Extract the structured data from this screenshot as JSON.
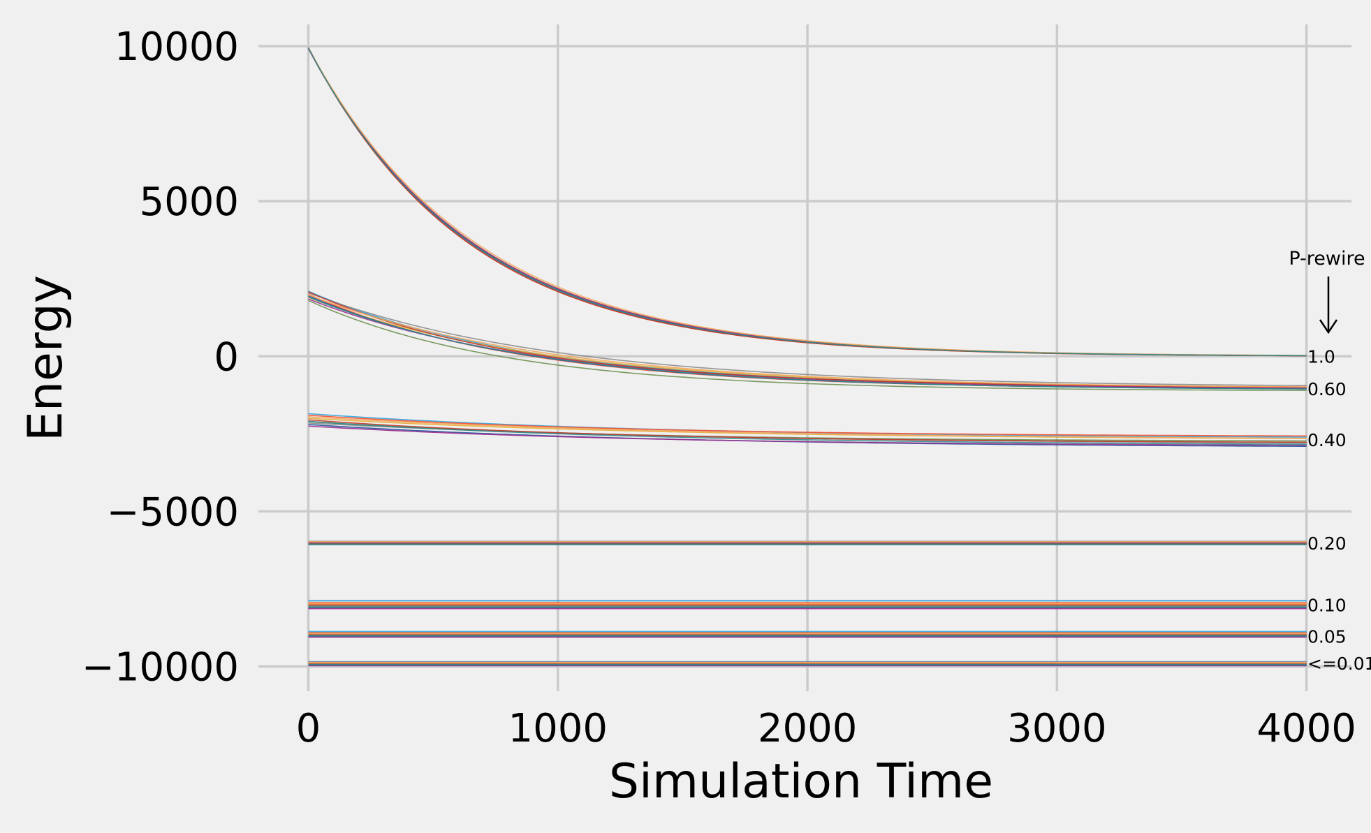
{
  "chart_data": {
    "type": "line",
    "title": "",
    "xlabel": "Simulation Time",
    "ylabel": "Energy",
    "xlim": [
      -200,
      4180
    ],
    "ylim": [
      -10800,
      10700
    ],
    "xticks": [
      0,
      1000,
      2000,
      3000,
      4000
    ],
    "xtick_labels": [
      "0",
      "1000",
      "2000",
      "3000",
      "4000"
    ],
    "yticks": [
      10000,
      5000,
      0,
      -5000,
      -10000
    ],
    "ytick_labels": [
      "10000",
      "5000",
      "0",
      "−5000",
      "−10000"
    ],
    "grid": true,
    "legend": "none",
    "t_end": 4000,
    "line_colors": [
      "#30a2da",
      "#fc4f30",
      "#e5ae38",
      "#6d904f",
      "#8b8b8b",
      "#1f4e9c",
      "#9b2c8e",
      "#c0392b",
      "#f2a65a",
      "#2e8b8b"
    ],
    "groups": [
      {
        "label": "1.0",
        "form": "exp",
        "start": [
          9950,
          9950,
          9930,
          9960,
          9940,
          9950,
          9920,
          9960,
          9950,
          9940
        ],
        "final": [
          0,
          0,
          5,
          -5,
          0,
          0,
          0,
          0,
          0,
          0
        ],
        "tau": [
          650,
          640,
          660,
          655,
          645,
          650,
          660,
          640,
          670,
          650
        ]
      },
      {
        "label": "0.60",
        "form": "exp",
        "start": [
          2100,
          2000,
          1900,
          1800,
          2050,
          1950,
          1850,
          2080,
          1980,
          1920
        ],
        "final": [
          -1050,
          -1070,
          -1030,
          -1120,
          -1000,
          -1080,
          -1060,
          -1020,
          -1040,
          -1090
        ],
        "tau": [
          900,
          850,
          950,
          800,
          1000,
          880,
          920,
          860,
          980,
          900
        ]
      },
      {
        "label": "0.40",
        "form": "exp",
        "start": [
          -1850,
          -1900,
          -2000,
          -2100,
          -2150,
          -2200,
          -2250,
          -2050,
          -1950,
          -2100
        ],
        "final": [
          -2650,
          -2600,
          -2700,
          -2750,
          -2850,
          -2950,
          -2900,
          -2800,
          -2700,
          -2880
        ],
        "tau": [
          1400,
          1300,
          1500,
          1200,
          1600,
          1450,
          1350,
          1250,
          1550,
          1400
        ]
      },
      {
        "label": "0.20",
        "form": "flat",
        "values": [
          -5970,
          -5990,
          -6010,
          -6040,
          -6070,
          -6000,
          -6020,
          -6050,
          -5980,
          -6060
        ]
      },
      {
        "label": "0.10",
        "form": "flat",
        "values": [
          -7880,
          -7950,
          -8000,
          -8030,
          -8060,
          -8100,
          -8130,
          -8010,
          -7980,
          -8090
        ]
      },
      {
        "label": "0.05",
        "form": "flat",
        "values": [
          -8880,
          -8920,
          -8950,
          -8980,
          -9000,
          -9020,
          -9050,
          -8960,
          -8940,
          -9010
        ]
      },
      {
        "label": "<=0.01",
        "form": "flat",
        "values": [
          -9850,
          -9870,
          -9890,
          -9910,
          -9930,
          -9950,
          -9970,
          -9900,
          -9880,
          -9940
        ]
      }
    ],
    "annotation_title": "P-rewire",
    "annotation_labels": [
      {
        "text": "1.0",
        "y": 0
      },
      {
        "text": "0.60",
        "y": -1050
      },
      {
        "text": "0.40",
        "y": -2700
      },
      {
        "text": "0.20",
        "y": -6030
      },
      {
        "text": "0.10",
        "y": -8020
      },
      {
        "text": "0.05",
        "y": -9030
      },
      {
        "text": "<=0.01",
        "y": -9900
      }
    ]
  }
}
